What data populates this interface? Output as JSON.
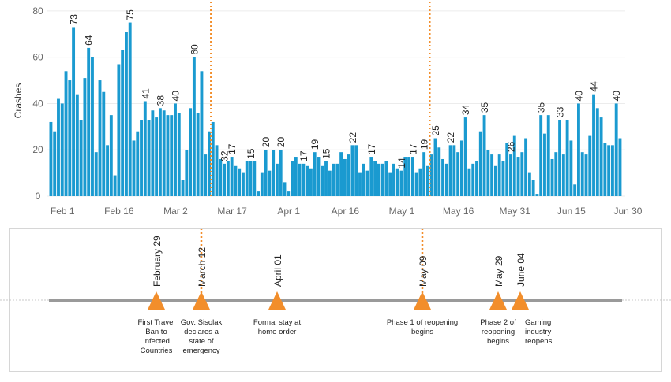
{
  "colors": {
    "bar": "#1a9ad0",
    "event_line": "#f28e2b",
    "marker": "#f28e2b",
    "timeline": "#9a9a9a",
    "grid": "#ececec"
  },
  "chart_data": {
    "type": "bar",
    "ylabel": "Crashes",
    "ylim": [
      0,
      82
    ],
    "yticks": [
      "0",
      "20",
      "40",
      "60",
      "80"
    ],
    "xticks": [
      "Feb 1",
      "Feb 16",
      "Mar 2",
      "Mar 17",
      "Apr 1",
      "Apr 16",
      "May 1",
      "May 16",
      "May 31",
      "Jun 15",
      "Jun 30"
    ],
    "x_start": "Jan 29",
    "values": [
      32,
      28,
      42,
      40,
      54,
      50,
      73,
      44,
      33,
      51,
      64,
      60,
      19,
      50,
      45,
      22,
      35,
      9,
      57,
      63,
      71,
      75,
      24,
      28,
      33,
      41,
      33,
      37,
      34,
      38,
      37,
      35,
      35,
      40,
      36,
      7,
      20,
      38,
      60,
      36,
      54,
      18,
      28,
      32,
      22,
      16,
      14,
      15,
      17,
      13,
      12,
      10,
      15,
      15,
      15,
      2,
      10,
      20,
      11,
      20,
      14,
      20,
      6,
      2,
      15,
      17,
      14,
      14,
      13,
      12,
      19,
      17,
      13,
      15,
      11,
      14,
      14,
      19,
      16,
      18,
      22,
      22,
      10,
      14,
      11,
      17,
      15,
      14,
      14,
      15,
      10,
      14,
      12,
      11,
      17,
      17,
      17,
      10,
      12,
      19,
      13,
      18,
      25,
      21,
      16,
      14,
      22,
      22,
      19,
      24,
      34,
      12,
      14,
      15,
      28,
      35,
      20,
      18,
      13,
      18,
      15,
      23,
      18,
      26,
      17,
      19,
      25,
      10,
      7,
      1,
      35,
      27,
      35,
      16,
      19,
      33,
      18,
      33,
      24,
      5,
      40,
      19,
      18,
      26,
      44,
      38,
      34,
      23,
      22,
      22,
      40,
      25
    ],
    "labeled_values": [
      73,
      64,
      75,
      41,
      38,
      40,
      60,
      32,
      17,
      15,
      20,
      20,
      17,
      19,
      15,
      22,
      17,
      14,
      17,
      19,
      25,
      22,
      34,
      35,
      26,
      35,
      33,
      40,
      44,
      40
    ],
    "event_dates": [
      "March 12",
      "May 09"
    ]
  },
  "timeline": {
    "events": [
      {
        "date": "February 29",
        "description": [
          "First Travel",
          "Ban to",
          "Infected",
          "Countries"
        ]
      },
      {
        "date": "March 12",
        "description": [
          "Gov. Sisolak",
          "declares a",
          "state of",
          "emergency"
        ]
      },
      {
        "date": "April 01",
        "description": [
          "Formal stay at",
          "home order"
        ]
      },
      {
        "date": "May 09",
        "description": [
          "Phase 1 of reopening",
          "begins"
        ]
      },
      {
        "date": "May 29",
        "description": [
          "Phase 2 of",
          "reopening",
          "begins"
        ]
      },
      {
        "date": "June 04",
        "description": [
          "Gaming",
          "industry",
          "reopens"
        ]
      }
    ]
  }
}
